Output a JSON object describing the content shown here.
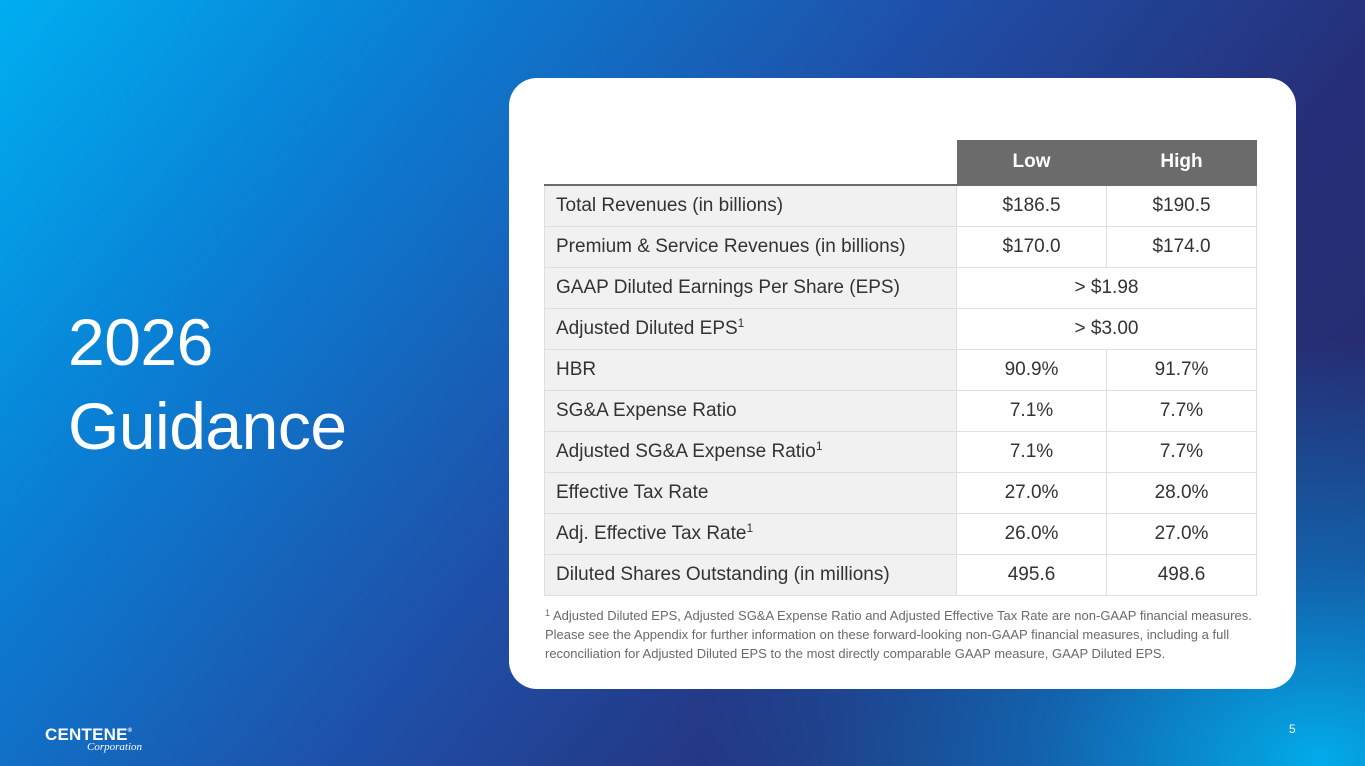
{
  "title": {
    "line1": "2026",
    "line2": "Guidance"
  },
  "table": {
    "headers": {
      "low": "Low",
      "high": "High"
    },
    "rows": [
      {
        "label": "Total Revenues (in billions)",
        "sup": "",
        "low": "$186.5",
        "high": "$190.5"
      },
      {
        "label": "Premium & Service Revenues (in billions)",
        "sup": "",
        "low": "$170.0",
        "high": "$174.0"
      },
      {
        "label": "GAAP Diluted Earnings Per Share (EPS)",
        "sup": "",
        "merged": "> $1.98"
      },
      {
        "label": "Adjusted Diluted EPS",
        "sup": "1",
        "merged": "> $3.00"
      },
      {
        "label": "HBR",
        "sup": "",
        "low": "90.9%",
        "high": "91.7%"
      },
      {
        "label": "SG&A Expense Ratio",
        "sup": "",
        "low": "7.1%",
        "high": "7.7%"
      },
      {
        "label": "Adjusted SG&A Expense Ratio",
        "sup": "1",
        "low": "7.1%",
        "high": "7.7%"
      },
      {
        "label": "Effective Tax Rate",
        "sup": "",
        "low": "27.0%",
        "high": "28.0%"
      },
      {
        "label": "Adj. Effective Tax Rate",
        "sup": "1",
        "low": "26.0%",
        "high": "27.0%"
      },
      {
        "label": "Diluted Shares Outstanding (in millions)",
        "sup": "",
        "low": "495.6",
        "high": "498.6"
      }
    ]
  },
  "footnote": {
    "mark": "1",
    "text": "Adjusted Diluted EPS, Adjusted SG&A Expense Ratio and Adjusted Effective Tax Rate are non-GAAP financial measures. Please see the Appendix for further information on these forward-looking non-GAAP financial measures, including a full reconciliation for Adjusted Diluted EPS to the most directly comparable GAAP measure, GAAP Diluted EPS."
  },
  "logo": {
    "name": "CENTENE",
    "mark": "®",
    "sub": "Corporation"
  },
  "page_number": "5"
}
